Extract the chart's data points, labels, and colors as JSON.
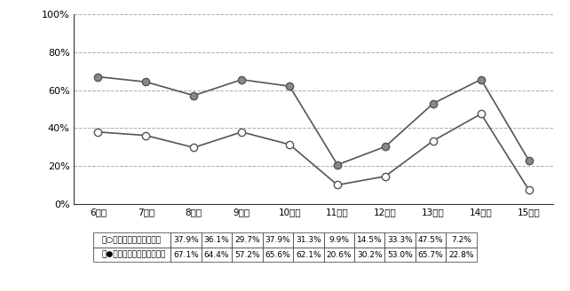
{
  "years": [
    "6年度",
    "7年度",
    "8年度",
    "9年度",
    "10年度",
    "11年度",
    "12年度",
    "13年度",
    "14年度",
    "15年度"
  ],
  "series1_label": "一般環境大気測定局",
  "series1_values": [
    37.9,
    36.1,
    29.7,
    37.9,
    31.3,
    9.9,
    14.5,
    33.3,
    47.5,
    7.2
  ],
  "series1_color": "#888888",
  "series1_marker": "o",
  "series1_marker_fill": "white",
  "series2_label": "自動車排出ガス測定局",
  "series2_values": [
    67.1,
    64.4,
    57.2,
    65.6,
    62.1,
    20.6,
    30.2,
    53.0,
    65.7,
    22.8
  ],
  "series2_color": "#888888",
  "series2_marker": "o",
  "series2_marker_fill": "#888888",
  "series1_table": [
    "37.9%",
    "36.1%",
    "29.7%",
    "37.9%",
    "31.3%",
    "9.9%",
    "14.5%",
    "33.3%",
    "47.5%",
    "7.2%"
  ],
  "series2_table": [
    "67.1%",
    "64.4%",
    "57.2%",
    "65.6%",
    "62.1%",
    "20.6%",
    "30.2%",
    "53.0%",
    "65.7%",
    "22.8%"
  ],
  "ylim": [
    0,
    100
  ],
  "yticks": [
    0,
    20,
    40,
    60,
    80,
    100
  ],
  "ytick_labels": [
    "0%",
    "20%",
    "40%",
    "60%",
    "80%",
    "100%"
  ],
  "background_color": "#ffffff",
  "grid_color": "#aaaaaa",
  "line_color": "#555555"
}
